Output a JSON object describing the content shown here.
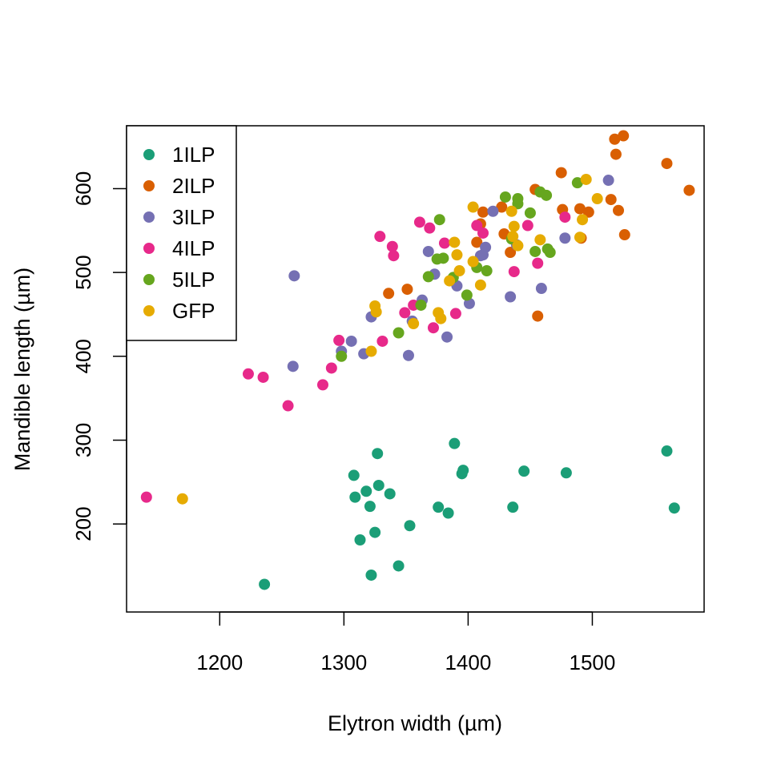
{
  "chart_data": {
    "type": "scatter",
    "title": "",
    "xlabel": "Elytron width (µm)",
    "ylabel": "Mandible length (µm)",
    "xlim": [
      1125,
      1590
    ],
    "ylim": [
      95,
      675
    ],
    "xticks": [
      1200,
      1300,
      1400,
      1500
    ],
    "yticks": [
      200,
      300,
      400,
      500,
      600
    ],
    "grid": false,
    "legend_position": "top-left",
    "series": [
      {
        "name": "1ILP",
        "color": "#1b9e77",
        "points": [
          [
            1236,
            128
          ],
          [
            1308,
            258
          ],
          [
            1309,
            232
          ],
          [
            1313,
            181
          ],
          [
            1318,
            239
          ],
          [
            1321,
            221
          ],
          [
            1322,
            139
          ],
          [
            1325,
            190
          ],
          [
            1327,
            284
          ],
          [
            1328,
            246
          ],
          [
            1337,
            236
          ],
          [
            1344,
            150
          ],
          [
            1353,
            198
          ],
          [
            1376,
            220
          ],
          [
            1384,
            213
          ],
          [
            1389,
            296
          ],
          [
            1395,
            260
          ],
          [
            1396,
            264
          ],
          [
            1436,
            220
          ],
          [
            1445,
            263
          ],
          [
            1479,
            261
          ],
          [
            1560,
            287
          ],
          [
            1566,
            219
          ]
        ]
      },
      {
        "name": "2ILP",
        "color": "#d95f02",
        "points": [
          [
            1336,
            475
          ],
          [
            1351,
            480
          ],
          [
            1407,
            536
          ],
          [
            1410,
            558
          ],
          [
            1412,
            572
          ],
          [
            1427,
            578
          ],
          [
            1429,
            546
          ],
          [
            1434,
            524
          ],
          [
            1454,
            599
          ],
          [
            1456,
            448
          ],
          [
            1475,
            619
          ],
          [
            1476,
            575
          ],
          [
            1490,
            576
          ],
          [
            1491,
            541
          ],
          [
            1497,
            572
          ],
          [
            1515,
            587
          ],
          [
            1518,
            659
          ],
          [
            1519,
            641
          ],
          [
            1521,
            574
          ],
          [
            1525,
            663
          ],
          [
            1526,
            545
          ],
          [
            1560,
            630
          ],
          [
            1578,
            598
          ]
        ]
      },
      {
        "name": "3ILP",
        "color": "#7570b3",
        "points": [
          [
            1259,
            388
          ],
          [
            1260,
            496
          ],
          [
            1298,
            406
          ],
          [
            1306,
            418
          ],
          [
            1316,
            403
          ],
          [
            1322,
            447
          ],
          [
            1352,
            401
          ],
          [
            1355,
            442
          ],
          [
            1363,
            467
          ],
          [
            1368,
            525
          ],
          [
            1373,
            498
          ],
          [
            1383,
            423
          ],
          [
            1391,
            484
          ],
          [
            1401,
            463
          ],
          [
            1410,
            520
          ],
          [
            1412,
            521
          ],
          [
            1414,
            530
          ],
          [
            1420,
            573
          ],
          [
            1434,
            471
          ],
          [
            1439,
            533
          ],
          [
            1459,
            481
          ],
          [
            1478,
            541
          ],
          [
            1513,
            610
          ]
        ]
      },
      {
        "name": "4ILP",
        "color": "#e7298a",
        "points": [
          [
            1141,
            232
          ],
          [
            1223,
            379
          ],
          [
            1235,
            375
          ],
          [
            1255,
            341
          ],
          [
            1283,
            366
          ],
          [
            1290,
            386
          ],
          [
            1296,
            419
          ],
          [
            1329,
            543
          ],
          [
            1331,
            418
          ],
          [
            1339,
            531
          ],
          [
            1340,
            520
          ],
          [
            1349,
            452
          ],
          [
            1356,
            461
          ],
          [
            1361,
            560
          ],
          [
            1369,
            553
          ],
          [
            1372,
            434
          ],
          [
            1381,
            535
          ],
          [
            1390,
            451
          ],
          [
            1407,
            556
          ],
          [
            1412,
            547
          ],
          [
            1437,
            501
          ],
          [
            1448,
            556
          ],
          [
            1456,
            511
          ],
          [
            1478,
            566
          ]
        ]
      },
      {
        "name": "5ILP",
        "color": "#66a61e",
        "points": [
          [
            1298,
            400
          ],
          [
            1344,
            428
          ],
          [
            1362,
            461
          ],
          [
            1368,
            495
          ],
          [
            1375,
            516
          ],
          [
            1377,
            563
          ],
          [
            1380,
            517
          ],
          [
            1388,
            494
          ],
          [
            1399,
            473
          ],
          [
            1407,
            506
          ],
          [
            1415,
            502
          ],
          [
            1430,
            590
          ],
          [
            1435,
            540
          ],
          [
            1440,
            582
          ],
          [
            1440,
            588
          ],
          [
            1450,
            571
          ],
          [
            1454,
            525
          ],
          [
            1458,
            596
          ],
          [
            1463,
            592
          ],
          [
            1464,
            528
          ],
          [
            1466,
            524
          ],
          [
            1488,
            607
          ]
        ]
      },
      {
        "name": "GFP",
        "color": "#e6ab02",
        "points": [
          [
            1170,
            230
          ],
          [
            1322,
            406
          ],
          [
            1325,
            460
          ],
          [
            1326,
            453
          ],
          [
            1356,
            439
          ],
          [
            1376,
            452
          ],
          [
            1378,
            445
          ],
          [
            1385,
            490
          ],
          [
            1389,
            536
          ],
          [
            1391,
            521
          ],
          [
            1393,
            502
          ],
          [
            1404,
            578
          ],
          [
            1404,
            513
          ],
          [
            1410,
            485
          ],
          [
            1435,
            573
          ],
          [
            1436,
            543
          ],
          [
            1437,
            555
          ],
          [
            1440,
            532
          ],
          [
            1458,
            539
          ],
          [
            1490,
            542
          ],
          [
            1492,
            563
          ],
          [
            1495,
            611
          ],
          [
            1504,
            588
          ]
        ]
      }
    ]
  }
}
